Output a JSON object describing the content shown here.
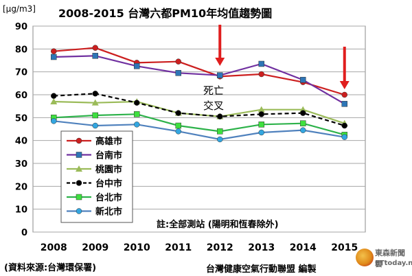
{
  "header": {
    "unit": "[μg/m3]",
    "title": "2008-2015 台灣六都PM10年均值趨勢圖"
  },
  "annotations": {
    "note": "註:全部測站 (陽明和恆春除外)",
    "death_cross_line1": "死亡",
    "death_cross_line2": "交叉",
    "arrow_color": "#e01e1e"
  },
  "footer": {
    "source": "(資料來源:台灣環保署)",
    "publisher": "台灣健康空氣行動聯盟 編製"
  },
  "watermark": {
    "name_zh": "東森新聞雲",
    "name_en": "ETtoday.net"
  },
  "chart_data": {
    "type": "line",
    "title": "2008-2015 台灣六都PM10年均值趨勢圖",
    "ylabel": "[μg/m3]",
    "xlabel": "",
    "categories": [
      "2008",
      "2009",
      "2010",
      "2011",
      "2012",
      "2013",
      "2014",
      "2015"
    ],
    "ylim": [
      0,
      90
    ],
    "yticks": [
      0,
      10,
      20,
      30,
      40,
      50,
      60,
      70,
      80,
      90
    ],
    "grid": true,
    "legend_position": "left",
    "series": [
      {
        "name": "高雄市",
        "color": "#cc1f1f",
        "marker": "circle",
        "dash": false,
        "values": [
          79,
          80.5,
          74,
          74.5,
          68,
          69,
          65.5,
          60
        ]
      },
      {
        "name": "台南市",
        "color": "#7030a0",
        "marker_color": "#2e75b6",
        "marker": "square",
        "dash": false,
        "values": [
          76.5,
          77,
          72.5,
          69.5,
          68.5,
          73.5,
          66.5,
          56
        ]
      },
      {
        "name": "桃園市",
        "color": "#9bbb59",
        "marker": "triangle",
        "dash": false,
        "values": [
          57,
          56.5,
          57,
          52,
          50.5,
          53.5,
          53.5,
          47.5
        ]
      },
      {
        "name": "台中市",
        "color": "#000000",
        "marker": "circle",
        "dash": true,
        "values": [
          59.5,
          60.5,
          56.5,
          52,
          50.5,
          51.5,
          52,
          46.5
        ]
      },
      {
        "name": "台北市",
        "color": "#2db24a",
        "marker_color": "#3ee03e",
        "marker": "square",
        "dash": false,
        "values": [
          50,
          51,
          51.5,
          46.5,
          44,
          47,
          47.5,
          42.5
        ]
      },
      {
        "name": "新北市",
        "color": "#4f81bd",
        "marker_color": "#33a6e0",
        "marker": "circle",
        "dash": false,
        "values": [
          48.5,
          46.5,
          47,
          44,
          40.5,
          43.5,
          44.5,
          41.5
        ]
      }
    ],
    "arrows_at": [
      "2012",
      "2015"
    ]
  }
}
